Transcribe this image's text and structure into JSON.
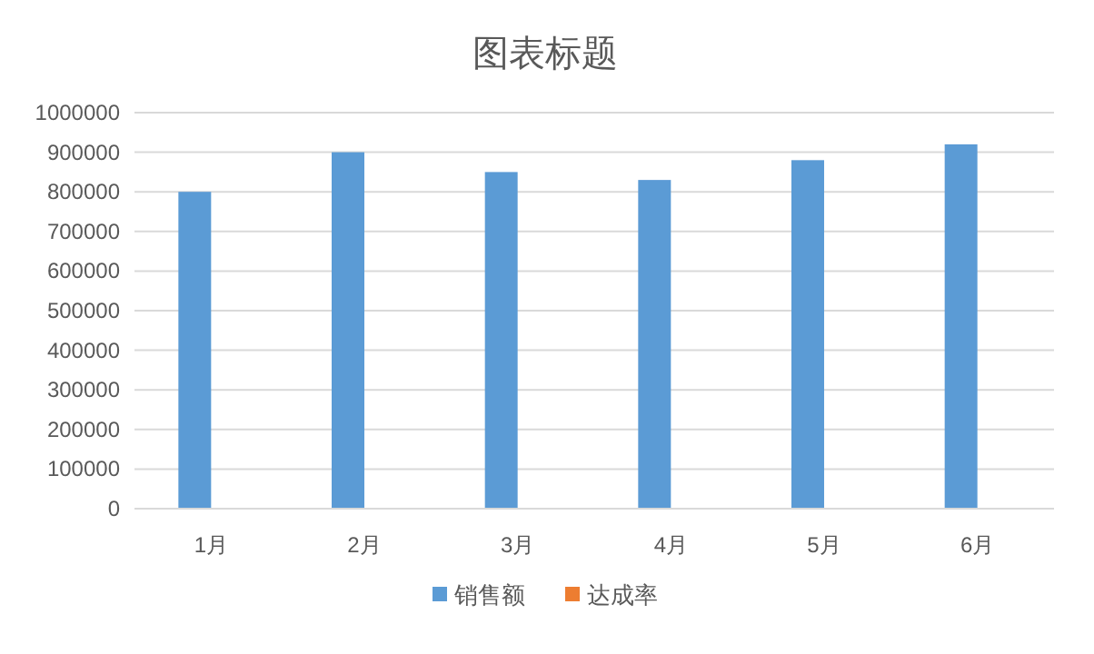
{
  "chart_data": {
    "type": "bar",
    "title": "图表标题",
    "categories": [
      "1月",
      "2月",
      "3月",
      "4月",
      "5月",
      "6月"
    ],
    "series": [
      {
        "name": "销售额",
        "color": "#5b9bd5",
        "values": [
          800000,
          900000,
          850000,
          830000,
          880000,
          920000
        ]
      },
      {
        "name": "达成率",
        "color": "#ed7d31",
        "values": [
          null,
          null,
          null,
          null,
          null,
          null
        ]
      }
    ],
    "ylim": [
      0,
      1000000
    ],
    "yticks": [
      0,
      100000,
      200000,
      300000,
      400000,
      500000,
      600000,
      700000,
      800000,
      900000,
      1000000
    ],
    "grid": "y",
    "legend": "bottom"
  }
}
